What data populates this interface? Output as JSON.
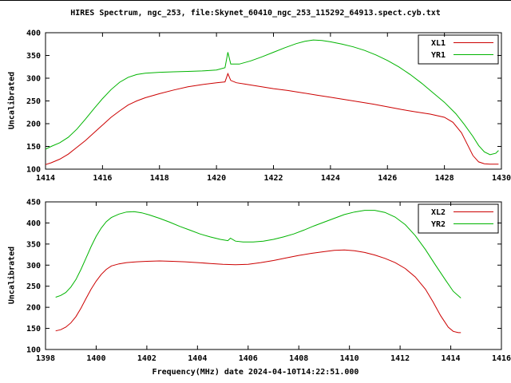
{
  "title": "HIRES Spectrum, ngc_253, file:Skynet_60410_ngc_253_115292_64913.spect.cyb.txt",
  "xlabel": "Frequency(MHz) date 2024-04-10T14:22:51.000",
  "colors": {
    "series_red": "#cc0000",
    "series_green": "#00b400",
    "axis": "#000000",
    "background": "#ffffff"
  },
  "chart_data": [
    {
      "type": "line",
      "title": "",
      "xlabel": "",
      "ylabel": "Uncalibrated",
      "xlim": [
        1414,
        1430
      ],
      "ylim": [
        100,
        400
      ],
      "xticks": [
        1414,
        1416,
        1418,
        1420,
        1422,
        1424,
        1426,
        1428,
        1430
      ],
      "yticks": [
        100,
        150,
        200,
        250,
        300,
        350,
        400
      ],
      "grid": false,
      "legend_position": "top-right",
      "series": [
        {
          "name": "XL1",
          "color": "#cc0000",
          "points": [
            [
              1414.0,
              110
            ],
            [
              1414.2,
              114
            ],
            [
              1414.5,
              122
            ],
            [
              1414.8,
              133
            ],
            [
              1415.1,
              148
            ],
            [
              1415.4,
              163
            ],
            [
              1415.7,
              180
            ],
            [
              1416.0,
              197
            ],
            [
              1416.3,
              214
            ],
            [
              1416.6,
              228
            ],
            [
              1416.9,
              241
            ],
            [
              1417.2,
              250
            ],
            [
              1417.5,
              257
            ],
            [
              1418.0,
              266
            ],
            [
              1418.5,
              274
            ],
            [
              1419.0,
              281
            ],
            [
              1419.5,
              286
            ],
            [
              1420.0,
              290
            ],
            [
              1420.3,
              292
            ],
            [
              1420.4,
              310
            ],
            [
              1420.5,
              295
            ],
            [
              1420.7,
              290
            ],
            [
              1421.0,
              287
            ],
            [
              1421.5,
              282
            ],
            [
              1422.0,
              277
            ],
            [
              1422.5,
              273
            ],
            [
              1423.0,
              268
            ],
            [
              1423.5,
              263
            ],
            [
              1424.0,
              258
            ],
            [
              1424.5,
              253
            ],
            [
              1425.0,
              248
            ],
            [
              1425.5,
              243
            ],
            [
              1426.0,
              237
            ],
            [
              1426.5,
              231
            ],
            [
              1427.0,
              226
            ],
            [
              1427.5,
              221
            ],
            [
              1428.0,
              214
            ],
            [
              1428.3,
              203
            ],
            [
              1428.6,
              180
            ],
            [
              1428.8,
              155
            ],
            [
              1429.0,
              130
            ],
            [
              1429.2,
              116
            ],
            [
              1429.4,
              112
            ],
            [
              1429.6,
              111
            ],
            [
              1429.9,
              111
            ]
          ]
        },
        {
          "name": "YR1",
          "color": "#00b400",
          "points": [
            [
              1414.0,
              144
            ],
            [
              1414.2,
              150
            ],
            [
              1414.5,
              158
            ],
            [
              1414.8,
              170
            ],
            [
              1415.1,
              188
            ],
            [
              1415.4,
              210
            ],
            [
              1415.7,
              233
            ],
            [
              1416.0,
              255
            ],
            [
              1416.3,
              275
            ],
            [
              1416.6,
              291
            ],
            [
              1416.9,
              302
            ],
            [
              1417.2,
              308
            ],
            [
              1417.5,
              311
            ],
            [
              1418.0,
              313
            ],
            [
              1418.5,
              314
            ],
            [
              1419.0,
              315
            ],
            [
              1419.5,
              316
            ],
            [
              1420.0,
              318
            ],
            [
              1420.3,
              323
            ],
            [
              1420.4,
              357
            ],
            [
              1420.5,
              331
            ],
            [
              1420.8,
              331
            ],
            [
              1421.2,
              338
            ],
            [
              1421.6,
              347
            ],
            [
              1422.0,
              357
            ],
            [
              1422.4,
              367
            ],
            [
              1422.8,
              376
            ],
            [
              1423.1,
              381
            ],
            [
              1423.4,
              384
            ],
            [
              1423.7,
              383
            ],
            [
              1424.0,
              380
            ],
            [
              1424.4,
              375
            ],
            [
              1424.8,
              369
            ],
            [
              1425.2,
              361
            ],
            [
              1425.6,
              351
            ],
            [
              1426.0,
              339
            ],
            [
              1426.4,
              325
            ],
            [
              1426.8,
              308
            ],
            [
              1427.2,
              289
            ],
            [
              1427.6,
              268
            ],
            [
              1428.0,
              247
            ],
            [
              1428.4,
              222
            ],
            [
              1428.7,
              198
            ],
            [
              1429.0,
              172
            ],
            [
              1429.2,
              152
            ],
            [
              1429.4,
              138
            ],
            [
              1429.6,
              132
            ],
            [
              1429.8,
              135
            ],
            [
              1429.9,
              141
            ]
          ]
        }
      ]
    },
    {
      "type": "line",
      "title": "",
      "xlabel": "Frequency(MHz) date 2024-04-10T14:22:51.000",
      "ylabel": "Uncalibrated",
      "xlim": [
        1398,
        1416
      ],
      "ylim": [
        100,
        450
      ],
      "xticks": [
        1398,
        1400,
        1402,
        1404,
        1406,
        1408,
        1410,
        1412,
        1414,
        1416
      ],
      "yticks": [
        100,
        150,
        200,
        250,
        300,
        350,
        400,
        450
      ],
      "grid": false,
      "legend_position": "top-right",
      "series": [
        {
          "name": "XL2",
          "color": "#cc0000",
          "points": [
            [
              1398.4,
              144
            ],
            [
              1398.6,
              147
            ],
            [
              1398.8,
              153
            ],
            [
              1399.0,
              163
            ],
            [
              1399.2,
              178
            ],
            [
              1399.4,
              198
            ],
            [
              1399.6,
              221
            ],
            [
              1399.8,
              243
            ],
            [
              1400.0,
              262
            ],
            [
              1400.2,
              278
            ],
            [
              1400.4,
              290
            ],
            [
              1400.6,
              298
            ],
            [
              1400.9,
              303
            ],
            [
              1401.2,
              306
            ],
            [
              1401.6,
              308
            ],
            [
              1402.0,
              309
            ],
            [
              1402.5,
              310
            ],
            [
              1403.0,
              309
            ],
            [
              1403.5,
              308
            ],
            [
              1404.0,
              306
            ],
            [
              1404.5,
              304
            ],
            [
              1405.0,
              302
            ],
            [
              1405.5,
              301
            ],
            [
              1406.0,
              302
            ],
            [
              1406.5,
              306
            ],
            [
              1407.0,
              311
            ],
            [
              1407.5,
              317
            ],
            [
              1408.0,
              323
            ],
            [
              1408.5,
              328
            ],
            [
              1409.0,
              332
            ],
            [
              1409.4,
              335
            ],
            [
              1409.8,
              336
            ],
            [
              1410.2,
              334
            ],
            [
              1410.6,
              330
            ],
            [
              1411.0,
              324
            ],
            [
              1411.4,
              316
            ],
            [
              1411.8,
              306
            ],
            [
              1412.2,
              292
            ],
            [
              1412.6,
              272
            ],
            [
              1413.0,
              243
            ],
            [
              1413.3,
              213
            ],
            [
              1413.6,
              180
            ],
            [
              1413.9,
              153
            ],
            [
              1414.1,
              143
            ],
            [
              1414.3,
              140
            ],
            [
              1414.4,
              140
            ]
          ]
        },
        {
          "name": "YR2",
          "color": "#00b400",
          "points": [
            [
              1398.4,
              224
            ],
            [
              1398.6,
              228
            ],
            [
              1398.8,
              235
            ],
            [
              1399.0,
              248
            ],
            [
              1399.2,
              266
            ],
            [
              1399.4,
              290
            ],
            [
              1399.6,
              317
            ],
            [
              1399.8,
              344
            ],
            [
              1400.0,
              368
            ],
            [
              1400.2,
              388
            ],
            [
              1400.4,
              403
            ],
            [
              1400.6,
              413
            ],
            [
              1400.9,
              421
            ],
            [
              1401.2,
              426
            ],
            [
              1401.5,
              427
            ],
            [
              1401.8,
              424
            ],
            [
              1402.1,
              419
            ],
            [
              1402.5,
              411
            ],
            [
              1402.9,
              402
            ],
            [
              1403.3,
              392
            ],
            [
              1403.7,
              383
            ],
            [
              1404.1,
              374
            ],
            [
              1404.5,
              367
            ],
            [
              1404.9,
              361
            ],
            [
              1405.2,
              358
            ],
            [
              1405.3,
              364
            ],
            [
              1405.5,
              357
            ],
            [
              1405.8,
              355
            ],
            [
              1406.2,
              355
            ],
            [
              1406.6,
              357
            ],
            [
              1407.0,
              361
            ],
            [
              1407.4,
              367
            ],
            [
              1407.8,
              374
            ],
            [
              1408.2,
              383
            ],
            [
              1408.6,
              393
            ],
            [
              1409.0,
              402
            ],
            [
              1409.4,
              411
            ],
            [
              1409.8,
              420
            ],
            [
              1410.2,
              426
            ],
            [
              1410.6,
              430
            ],
            [
              1411.0,
              430
            ],
            [
              1411.4,
              425
            ],
            [
              1411.8,
              414
            ],
            [
              1412.2,
              396
            ],
            [
              1412.6,
              370
            ],
            [
              1413.0,
              337
            ],
            [
              1413.4,
              300
            ],
            [
              1413.8,
              264
            ],
            [
              1414.1,
              238
            ],
            [
              1414.4,
              222
            ]
          ]
        }
      ]
    }
  ]
}
